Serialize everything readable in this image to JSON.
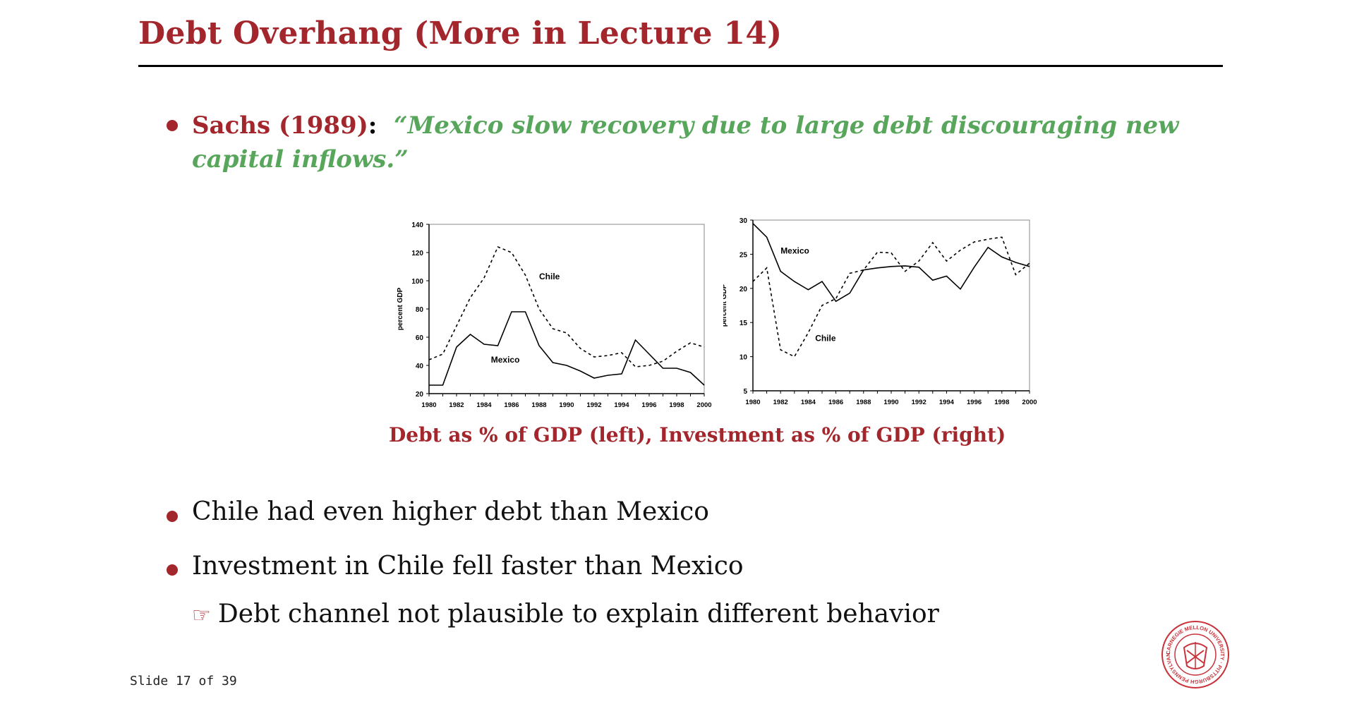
{
  "slide": {
    "title": "Debt Overhang (More in Lecture 14)",
    "slide_number": "Slide 17 of 39"
  },
  "bullets": {
    "sachs_ref": "Sachs (1989)",
    "sachs_colon": ":",
    "sachs_quote": "“Mexico slow recovery due to large debt discouraging new capital inflows.”",
    "chile_debt": "Chile had even higher debt than Mexico",
    "chile_investment": "Investment in Chile fell faster than Mexico",
    "conclusion_pointer": "☞",
    "conclusion": "Debt channel not plausible to explain different behavior"
  },
  "caption": "Debt as % of GDP (left), Investment as % of GDP (right)",
  "seal": {
    "text": "CARNEGIE MELLON UNIVERSITY · PITTSBURGH PENNSYLVANIA 1900"
  },
  "colors": {
    "accent": "#a3262d",
    "quote_green": "#58a65c"
  },
  "chart_data": [
    {
      "type": "line",
      "title": "",
      "xlabel": "",
      "ylabel": "percent GDP",
      "x": [
        1980,
        1981,
        1982,
        1983,
        1984,
        1985,
        1986,
        1987,
        1988,
        1989,
        1990,
        1991,
        1992,
        1993,
        1994,
        1995,
        1996,
        1997,
        1998,
        1999,
        2000
      ],
      "xticks": [
        "1980",
        "1982",
        "1984",
        "1986",
        "1988",
        "1990",
        "1992",
        "1994",
        "1996",
        "1998",
        "2000"
      ],
      "xlim": [
        1980,
        2000
      ],
      "ylim": [
        20,
        140
      ],
      "yticks": [
        "20",
        "40",
        "60",
        "80",
        "100",
        "120",
        "140"
      ],
      "grid": false,
      "series": [
        {
          "name": "Chile",
          "style": "dashed",
          "values": [
            44,
            48,
            68,
            88,
            102,
            124,
            120,
            104,
            80,
            66,
            63,
            52,
            46,
            47,
            49,
            39,
            40,
            43,
            50,
            56,
            53
          ]
        },
        {
          "name": "Mexico",
          "style": "solid",
          "values": [
            26,
            26,
            53,
            62,
            55,
            54,
            78,
            78,
            54,
            42,
            40,
            36,
            31,
            33,
            34,
            58,
            48,
            38,
            38,
            35,
            26
          ]
        }
      ],
      "annotations": [
        {
          "text": "Chile",
          "x": 1988,
          "y": 101
        },
        {
          "text": "Mexico",
          "x": 1984.5,
          "y": 42
        }
      ]
    },
    {
      "type": "line",
      "title": "",
      "xlabel": "",
      "ylabel": "percent GDP",
      "x": [
        1980,
        1981,
        1982,
        1983,
        1984,
        1985,
        1986,
        1987,
        1988,
        1989,
        1990,
        1991,
        1992,
        1993,
        1994,
        1995,
        1996,
        1997,
        1998,
        1999,
        2000
      ],
      "xticks": [
        "1980",
        "1982",
        "1984",
        "1986",
        "1988",
        "1990",
        "1992",
        "1994",
        "1996",
        "1998",
        "2000"
      ],
      "xlim": [
        1980,
        2000
      ],
      "ylim": [
        5,
        30
      ],
      "yticks": [
        "5",
        "10",
        "15",
        "20",
        "25",
        "30"
      ],
      "grid": false,
      "series": [
        {
          "name": "Mexico",
          "style": "solid",
          "values": [
            29.5,
            27.5,
            22.5,
            21,
            19.8,
            21,
            18.1,
            19.3,
            22.7,
            23,
            23.2,
            23.3,
            23.1,
            21.2,
            21.8,
            19.9,
            23.1,
            26,
            24.6,
            23.8,
            23.2
          ]
        },
        {
          "name": "Chile",
          "style": "dashed",
          "values": [
            21,
            23,
            11,
            10,
            13.5,
            17.5,
            18.5,
            22.2,
            22.7,
            25.3,
            25.2,
            22.5,
            24,
            26.7,
            24,
            25.6,
            26.8,
            27.2,
            27.5,
            22,
            23.7
          ]
        }
      ],
      "annotations": [
        {
          "text": "Mexico",
          "x": 1982,
          "y": 25.1
        },
        {
          "text": "Chile",
          "x": 1984.5,
          "y": 12.3
        }
      ]
    }
  ]
}
